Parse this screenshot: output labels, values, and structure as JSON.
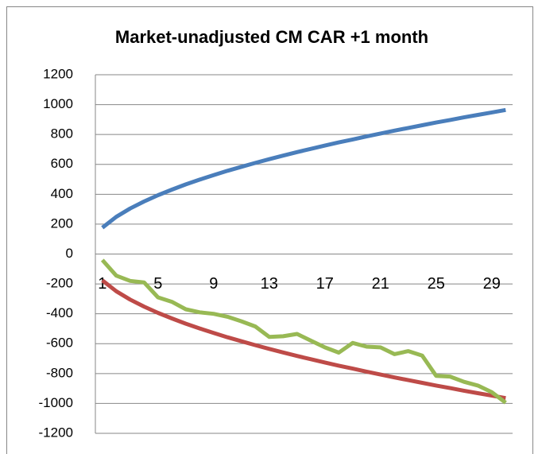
{
  "chart_data": {
    "type": "line",
    "title": "Market-unadjusted CM CAR +1 month",
    "categories": [
      1,
      null,
      null,
      null,
      5,
      null,
      null,
      null,
      9,
      null,
      null,
      null,
      13,
      null,
      null,
      null,
      17,
      null,
      null,
      null,
      21,
      null,
      null,
      null,
      25,
      null,
      null,
      null,
      29,
      null
    ],
    "series": [
      {
        "color": "#4a7ebb",
        "values": [
          176,
          249,
          305,
          352,
          394,
          431,
          466,
          498,
          528,
          557,
          584,
          610,
          635,
          659,
          682,
          704,
          726,
          747,
          767,
          787,
          807,
          826,
          844,
          862,
          880,
          897,
          915,
          931,
          948,
          964
        ]
      },
      {
        "color": "#be4b48",
        "values": [
          -176,
          -249,
          -305,
          -352,
          -394,
          -431,
          -466,
          -498,
          -528,
          -557,
          -584,
          -610,
          -635,
          -659,
          -682,
          -704,
          -726,
          -747,
          -767,
          -787,
          -807,
          -826,
          -844,
          -862,
          -880,
          -897,
          -915,
          -931,
          -948,
          -964
        ]
      },
      {
        "color": "#98b954",
        "values": [
          -40,
          -145,
          -180,
          -190,
          -290,
          -320,
          -370,
          -390,
          -400,
          -420,
          -450,
          -485,
          -555,
          -550,
          -535,
          -580,
          -625,
          -660,
          -595,
          -620,
          -625,
          -670,
          -650,
          -680,
          -815,
          -820,
          -855,
          -880,
          -925,
          -995
        ]
      }
    ],
    "ylim": [
      -1200,
      1200
    ],
    "yticks": [
      -1200,
      -1000,
      -800,
      -600,
      -400,
      -200,
      0,
      200,
      400,
      600,
      800,
      1000,
      1200
    ],
    "grid": true
  }
}
